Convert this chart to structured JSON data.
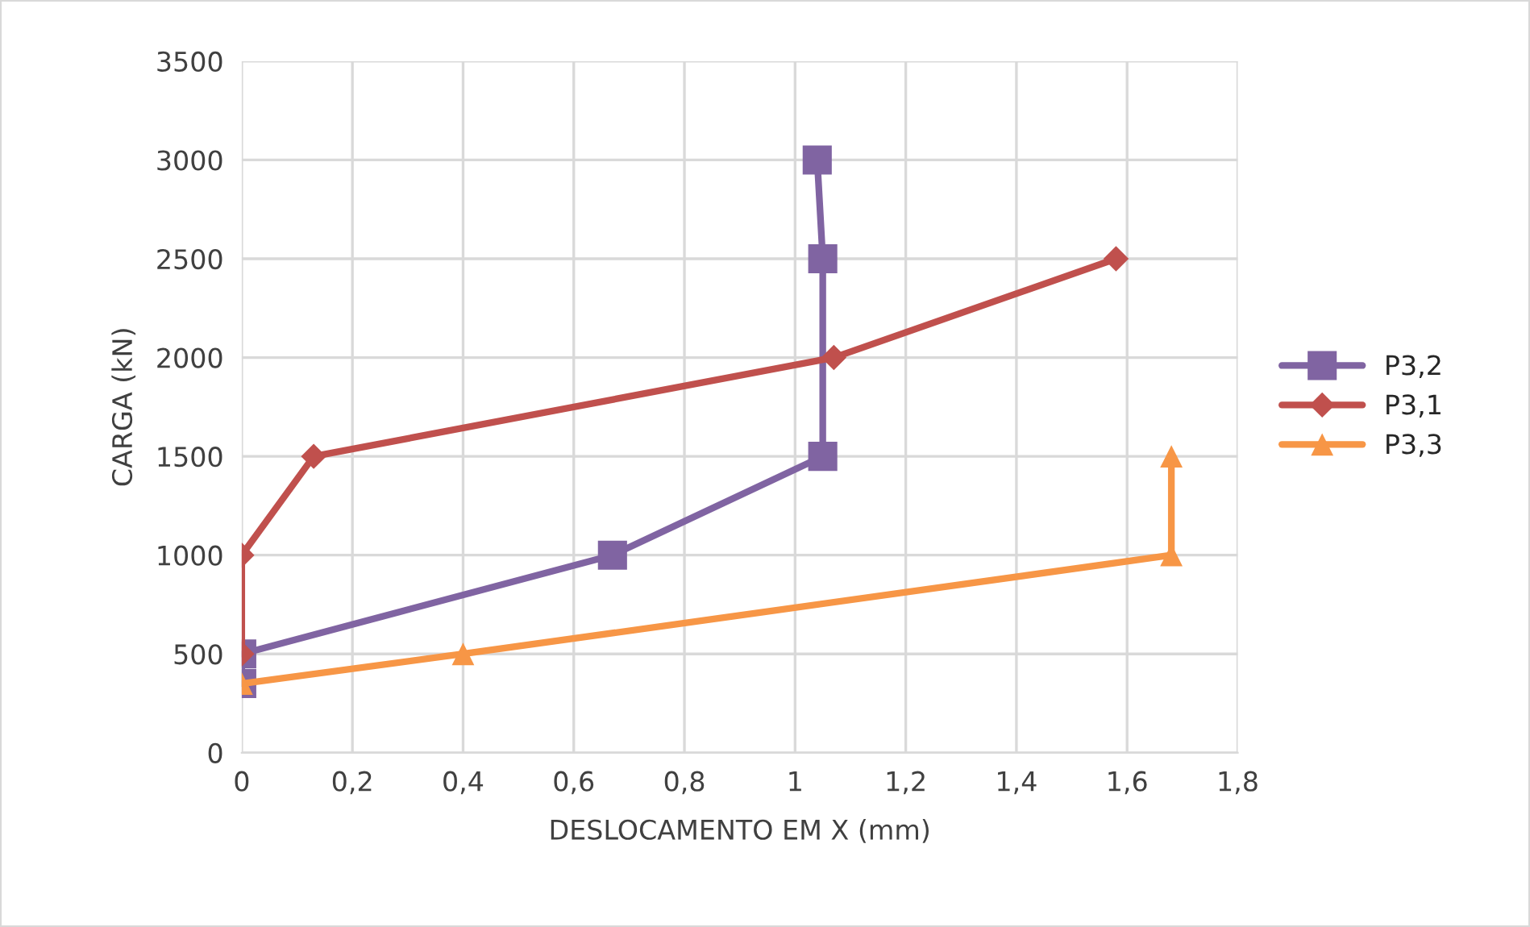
{
  "chart_data": {
    "type": "line",
    "xlabel": "DESLOCAMENTO EM X (mm)",
    "ylabel": "CARGA (kN)",
    "series": [
      {
        "name": "P3,2",
        "color": "#8064a2",
        "marker": "square",
        "x": [
          0,
          0,
          0.67,
          1.05,
          1.05,
          1.04
        ],
        "values": [
          350,
          500,
          1000,
          1500,
          2500,
          3000
        ]
      },
      {
        "name": "P3,1",
        "color": "#c0504d",
        "marker": "diamond",
        "x": [
          0,
          0,
          0.13,
          1.07,
          1.58
        ],
        "values": [
          500,
          1000,
          1500,
          2000,
          2500
        ]
      },
      {
        "name": "P3,3",
        "color": "#f79646",
        "marker": "triangle",
        "x": [
          0,
          0.4,
          1.68,
          1.68
        ],
        "values": [
          350,
          500,
          1000,
          1500
        ]
      }
    ],
    "xlim": [
      0,
      1.8
    ],
    "xticks": [
      0,
      {
        "value": 0.2,
        "label": "0,2"
      },
      {
        "value": 0.4,
        "label": "0,4"
      },
      {
        "value": 0.6,
        "label": "0,6"
      },
      {
        "value": 0.8,
        "label": "0,8"
      },
      1,
      {
        "value": 1.2,
        "label": "1,2"
      },
      {
        "value": 1.4,
        "label": "1,4"
      },
      {
        "value": 1.6,
        "label": "1,6"
      },
      {
        "value": 1.8,
        "label": "1,8"
      }
    ],
    "ylim": [
      0,
      3500
    ],
    "yticks": [
      0,
      500,
      1000,
      1500,
      2000,
      2500,
      3000,
      3500
    ],
    "grid": true,
    "legend": "right"
  }
}
